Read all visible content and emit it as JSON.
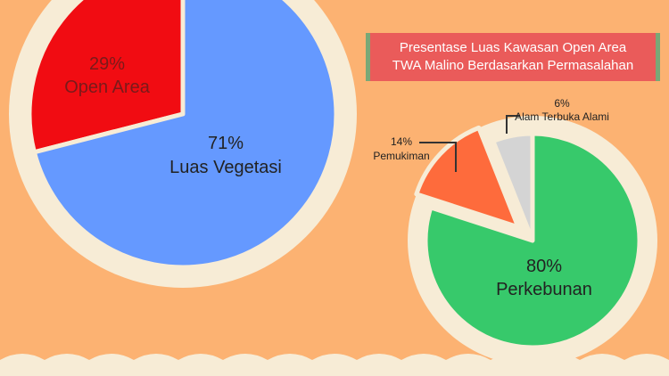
{
  "title": {
    "line1": "Presentase Luas Kawasan Open Area",
    "line2": "TWA Malino Berdasarkan Permasalahan"
  },
  "chart_data": [
    {
      "type": "pie",
      "slices": [
        {
          "label": "Open Area",
          "value": 29,
          "value_label": "29%",
          "color": "#f10c12"
        },
        {
          "label": "Luas Vegetasi",
          "value": 71,
          "value_label": "71%",
          "color": "#6599ff"
        }
      ]
    },
    {
      "type": "pie",
      "title": "Presentase Luas Kawasan Open Area TWA Malino Berdasarkan Permasalahan",
      "slices": [
        {
          "label": "Alam Terbuka Alami",
          "value": 6,
          "value_label": "6%",
          "color": "#d4d4d4"
        },
        {
          "label": "Perkebunan",
          "value": 80,
          "value_label": "80%",
          "color": "#37c96b"
        },
        {
          "label": "Pemukiman",
          "value": 14,
          "value_label": "14%",
          "color": "#fe6b3c"
        }
      ]
    }
  ],
  "colors": {
    "background": "#fcb272",
    "ring": "#f7ecd6",
    "title_bg": "#ea5b5a",
    "title_accent": "#79a877",
    "wave": "#f7ecd6"
  }
}
